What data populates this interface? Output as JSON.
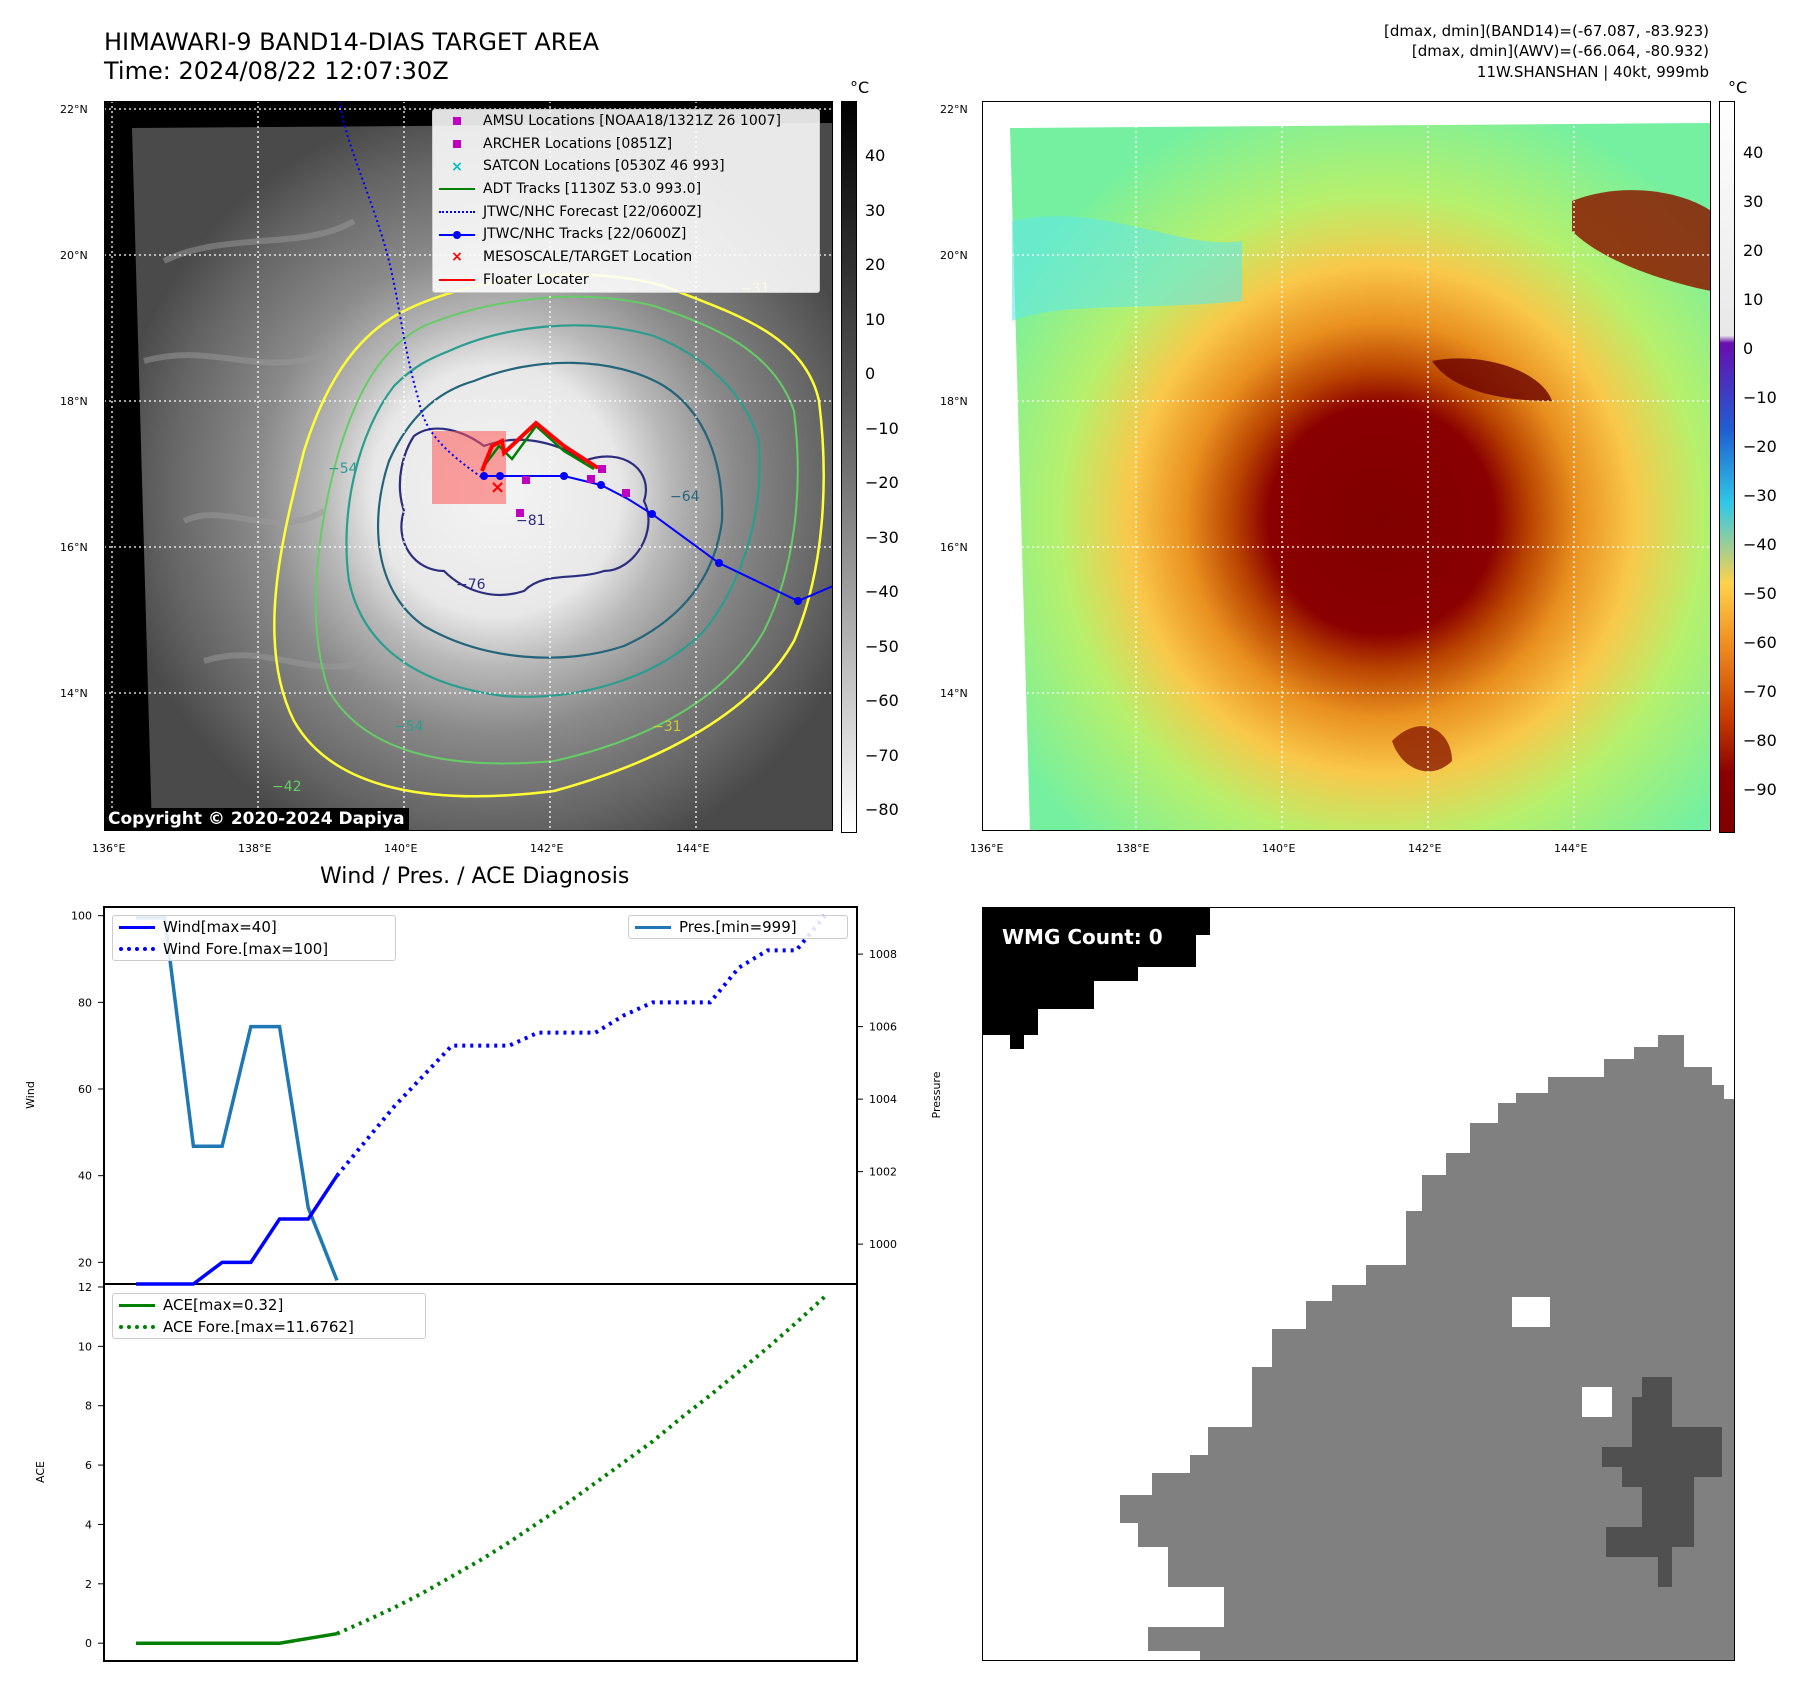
{
  "header": {
    "title_line1": "HIMAWARI-9 BAND14-DIAS TARGET AREA",
    "title_line2": "Time: 2024/08/22 12:07:30Z",
    "info_line1": "[dmax, dmin](BAND14)=(-67.087, -83.923)",
    "info_line2": "[dmax, dmin](AWV)=(-66.064, -80.932)",
    "info_line3": "11W.SHANSHAN | 40kt, 999mb"
  },
  "map_ir": {
    "lat_labels": [
      "22°N",
      "20°N",
      "18°N",
      "16°N",
      "14°N"
    ],
    "lon_labels": [
      "136°E",
      "138°E",
      "140°E",
      "142°E",
      "144°E"
    ],
    "colorbar_unit": "°C",
    "colorbar_ticks": [
      "40",
      "30",
      "20",
      "10",
      "0",
      "−10",
      "−20",
      "−30",
      "−40",
      "−50",
      "−60",
      "−70",
      "−80"
    ],
    "contour_labels": [
      "−31",
      "−54",
      "−54",
      "−64",
      "−76",
      "−81",
      "−31",
      "−54",
      "−42"
    ],
    "copyright": "Copyright © 2020-2024 Dapiya",
    "legend": [
      {
        "label": "AMSU Locations [NOAA18/1321Z 26 1007]",
        "color": "#c000c0",
        "marker": "square"
      },
      {
        "label": "ARCHER Locations [0851Z]",
        "color": "#c000c0",
        "marker": "square"
      },
      {
        "label": "SATCON Locations [0530Z 46 993]",
        "color": "#00c0c0",
        "marker": "x"
      },
      {
        "label": "ADT Tracks [1130Z 53.0 993.0]",
        "color": "#008000",
        "marker": "line"
      },
      {
        "label": "JTWC/NHC Forecast [22/0600Z]",
        "color": "#0000ff",
        "marker": "dotted"
      },
      {
        "label": "JTWC/NHC Tracks [22/0600Z]",
        "color": "#0000ff",
        "marker": "line-dot"
      },
      {
        "label": "MESOSCALE/TARGET Location",
        "color": "#ff0000",
        "marker": "x"
      },
      {
        "label": "Floater Locater",
        "color": "#ff0000",
        "marker": "line"
      }
    ]
  },
  "map_color": {
    "lat_labels": [
      "22°N",
      "20°N",
      "18°N",
      "16°N",
      "14°N"
    ],
    "lon_labels": [
      "136°E",
      "138°E",
      "140°E",
      "142°E",
      "144°E"
    ],
    "colorbar_unit": "°C",
    "colorbar_ticks": [
      "40",
      "30",
      "20",
      "10",
      "0",
      "−10",
      "−20",
      "−30",
      "−40",
      "−50",
      "−60",
      "−70",
      "−80",
      "−90"
    ]
  },
  "diag": {
    "title": "Wind / Pres. / ACE Diagnosis",
    "wind_ylabel": "Wind",
    "pres_ylabel": "Pressure",
    "ace_ylabel": "ACE",
    "wind_ticks": [
      "100",
      "80",
      "60",
      "40",
      "20"
    ],
    "pres_ticks": [
      "1008",
      "1006",
      "1004",
      "1002",
      "1000"
    ],
    "ace_ticks": [
      "12",
      "10",
      "8",
      "6",
      "4",
      "2",
      "0"
    ],
    "legend_wind": "Wind[max=40]",
    "legend_wind_fore": "Wind Fore.[max=100]",
    "legend_pres": "Pres.[min=999]",
    "legend_ace": "ACE[max=0.32]",
    "legend_ace_fore": "ACE Fore.[max=11.6762]"
  },
  "wmg": {
    "label": "WMG Count: 0"
  },
  "chart_data": [
    {
      "type": "line",
      "title": "Wind / Pres. / ACE Diagnosis",
      "ylabel": "Wind",
      "y2label": "Pressure",
      "ylim": [
        15,
        102
      ],
      "y2lim": [
        998.9,
        1009.3
      ],
      "series": [
        {
          "name": "Wind[max=40]",
          "axis": "left",
          "style": "solid",
          "color": "#0000ff",
          "x": [
            0,
            1,
            2,
            3,
            4,
            5,
            6,
            7
          ],
          "values": [
            15,
            15,
            15,
            20,
            20,
            30,
            30,
            40
          ]
        },
        {
          "name": "Wind Fore.[max=100]",
          "axis": "left",
          "style": "dotted",
          "color": "#0000ff",
          "x": [
            7,
            8,
            9,
            10,
            11,
            12,
            13,
            14,
            15,
            16,
            17,
            18,
            19,
            20,
            21,
            22,
            23,
            24
          ],
          "values": [
            40,
            48,
            56,
            63,
            70,
            70,
            70,
            73,
            73,
            73,
            77,
            80,
            80,
            80,
            88,
            92,
            92,
            100
          ]
        },
        {
          "name": "Pres.[min=999]",
          "axis": "right",
          "style": "solid",
          "color": "#1f77b4",
          "x": [
            0,
            1,
            2,
            3,
            4,
            5,
            6,
            7
          ],
          "values": [
            1009,
            1009,
            1002.7,
            1002.7,
            1006,
            1006,
            1001,
            999
          ]
        }
      ]
    },
    {
      "type": "line",
      "ylabel": "ACE",
      "ylim": [
        -0.6,
        12.1
      ],
      "series": [
        {
          "name": "ACE[max=0.32]",
          "style": "solid",
          "color": "#008000",
          "x": [
            0,
            1,
            2,
            3,
            4,
            5,
            6,
            7
          ],
          "values": [
            0,
            0,
            0,
            0,
            0,
            0,
            0.16,
            0.32
          ]
        },
        {
          "name": "ACE Fore.[max=11.6762]",
          "style": "dotted",
          "color": "#008000",
          "x": [
            7,
            8,
            9,
            10,
            11,
            12,
            13,
            14,
            15,
            16,
            17,
            18,
            19,
            20,
            21,
            22,
            23,
            24
          ],
          "values": [
            0.32,
            0.75,
            1.2,
            1.7,
            2.25,
            2.8,
            3.4,
            4.05,
            4.7,
            5.4,
            6.1,
            6.8,
            7.6,
            8.35,
            9.15,
            9.95,
            10.8,
            11.68
          ]
        }
      ]
    }
  ]
}
